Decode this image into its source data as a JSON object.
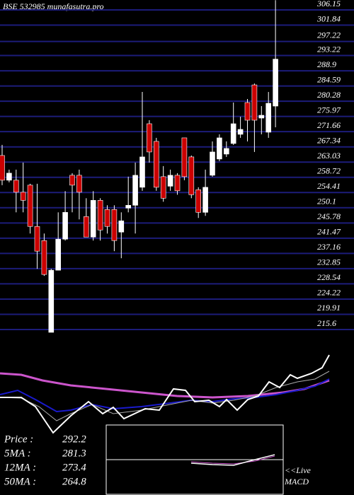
{
  "chart_data": {
    "type": "candlestick",
    "title": "BSE 532985 munafasutra.pro",
    "open": [
      264.9,
      257.9,
      257.9,
      254.5,
      256.5,
      244.8,
      240.8,
      214.8,
      232.4,
      241.2,
      259.3,
      259.3,
      247.6,
      241.8,
      252.2,
      249.6,
      249.6,
      243.2,
      250.0,
      250.8,
      255.9,
      273.9,
      268.9,
      258.9,
      256.2,
      259.3,
      269.9,
      264.5,
      255.2,
      248.8,
      259.3,
      263.9,
      265.3,
      268.3,
      270.9,
      279.9,
      284.9,
      275.5,
      271.5,
      278.9
    ],
    "high": [
      267.9,
      260.9,
      260.9,
      262.9,
      256.9,
      256.9,
      242.8,
      232.8,
      248.8,
      254.8,
      259.9,
      260.9,
      252.8,
      254.8,
      252.8,
      250.8,
      250.8,
      248.8,
      258.9,
      262.9,
      282.9,
      274.9,
      269.9,
      261.9,
      260.9,
      259.9,
      269.9,
      264.9,
      255.9,
      260.9,
      268.9,
      270.9,
      268.9,
      279.9,
      275.9,
      280.9,
      285.3,
      278.9,
      282.9,
      308.9
    ],
    "low": [
      256.5,
      257.3,
      248.8,
      248.8,
      242.8,
      232.8,
      230.8,
      214.8,
      232.4,
      240.8,
      248.8,
      246.8,
      241.8,
      240.8,
      240.8,
      242.8,
      237.8,
      235.8,
      248.8,
      242.8,
      254.9,
      262.9,
      254.9,
      251.8,
      254.9,
      253.8,
      257.9,
      252.8,
      247.2,
      247.8,
      258.9,
      263.3,
      264.5,
      267.9,
      269.9,
      268.9,
      265.9,
      270.9,
      269.9,
      272.9
    ],
    "close": [
      257.9,
      259.9,
      254.5,
      252.2,
      244.8,
      237.8,
      231.2,
      232.4,
      241.2,
      248.8,
      256.5,
      254.5,
      241.8,
      252.2,
      243.8,
      244.8,
      240.8,
      246.4,
      250.8,
      259.3,
      264.5,
      265.9,
      255.9,
      252.8,
      259.3,
      254.9,
      258.9,
      253.8,
      248.8,
      255.9,
      265.9,
      269.9,
      266.9,
      273.9,
      272.3,
      274.9,
      274.9,
      276.3,
      279.7,
      292.2
    ],
    "up_color": "#ffffff",
    "down_color": "#cc0000",
    "grid_color": "#1c1c7a",
    "ylim": [
      215.6,
      306.15
    ],
    "yticks": [
      306.15,
      301.84,
      297.22,
      293.22,
      288.9,
      284.59,
      280.28,
      275.97,
      271.66,
      267.34,
      263.03,
      258.72,
      254.41,
      250.1,
      245.78,
      241.47,
      237.16,
      232.85,
      228.54,
      224.22,
      219.91,
      215.6
    ],
    "grid": true,
    "stats": [
      {
        "label": "Price  :",
        "value": 292.2
      },
      {
        "label": "5MA :",
        "value": 281.3
      },
      {
        "label": "12MA :",
        "value": 273.4
      },
      {
        "label": "50MA :",
        "value": 264.8
      }
    ],
    "live_label": "<<Live",
    "macd_label": "MACD"
  }
}
